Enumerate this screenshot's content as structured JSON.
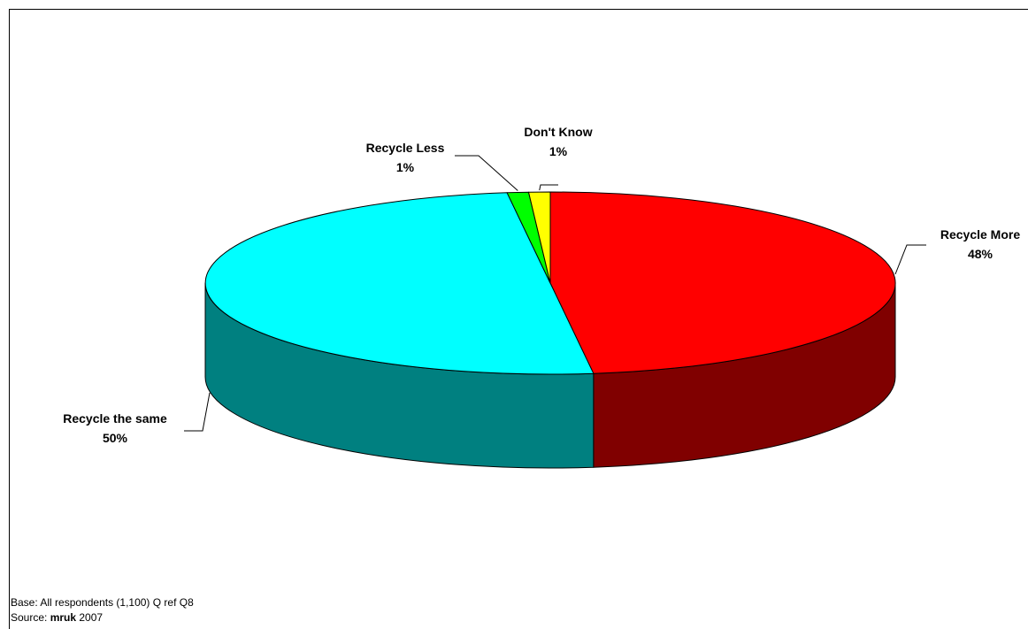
{
  "chart_data": {
    "type": "pie",
    "style": "3d",
    "title": "",
    "slices": [
      {
        "label": "Recycle More",
        "value": 48,
        "value_label": "48%",
        "color": "#FF0000",
        "side_color": "#800000"
      },
      {
        "label": "Recycle the same",
        "value": 50,
        "value_label": "50%",
        "color": "#00FFFF",
        "side_color": "#008080"
      },
      {
        "label": "Recycle Less",
        "value": 1,
        "value_label": "1%",
        "color": "#00FF00",
        "side_color": "#008000"
      },
      {
        "label": "Don't Know",
        "value": 1,
        "value_label": "1%",
        "color": "#FFFF00",
        "side_color": "#808000"
      }
    ],
    "legend": "none",
    "data_labels": "outside with leader lines"
  },
  "footnote": {
    "base": "Base: All respondents (1,100) Q ref Q8",
    "source_prefix": "Source: ",
    "source_brand": "mruk",
    "source_year": " 2007"
  }
}
